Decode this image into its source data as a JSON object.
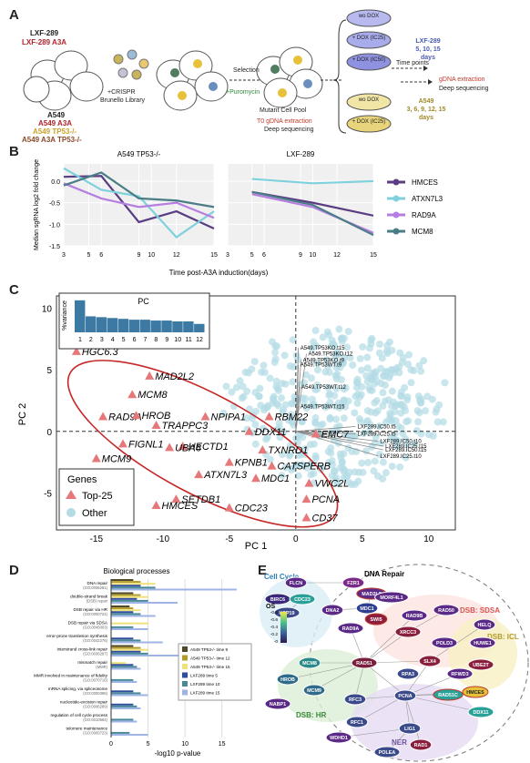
{
  "panelA": {
    "letter": "A",
    "lxf_label": "LXF-289",
    "lxf_a3a": "LXF-289 A3A",
    "a549_labels": [
      "A549",
      "A549 A3A",
      "A549 TP53-/-",
      "A549 A3A TP53-/-"
    ],
    "library": [
      "+CRISPR",
      "Brunello Library"
    ],
    "selection": "Selection",
    "puromycin": "+Puromycin",
    "pool": "Mutant Cell Pool",
    "t0": "T0 gDNA extraction",
    "t0_seq": "Deep sequencing",
    "dishes_top": [
      "wo DOX",
      "+ DOX (IC25)",
      "+ DOX (IC50)"
    ],
    "dishes_bottom": [
      "wo DOX",
      "+ DOX (IC25)"
    ],
    "lxf_days": [
      "LXF-289",
      "5, 10, 15",
      "days"
    ],
    "timepoints": "Time points",
    "gdna": "gDNA extraction",
    "deep": "Deep sequencing",
    "a549_days": [
      "A549",
      "3, 6, 9, 12, 15",
      "days"
    ]
  },
  "panelB": {
    "letter": "B",
    "ylabel": [
      "Median sgRNA log2 fold change"
    ],
    "xlabel": "Time post-A3A induction(days)",
    "legend": [
      "HMCES",
      "ATXN7L3",
      "RAD9A",
      "MCM8"
    ]
  },
  "chart_data": [
    {
      "type": "line",
      "title": "A549 TP53-/-",
      "xlabel": "Time post-A3A induction(days)",
      "ylabel": "Median sgRNA log2 fold change",
      "x": [
        3,
        6,
        9,
        12,
        15
      ],
      "x_ticks": [
        3,
        5,
        6,
        9,
        10,
        12,
        15
      ],
      "ylim": [
        -1.5,
        0.4
      ],
      "y_ticks": [
        0.0,
        -0.5,
        -1.0,
        -1.5
      ],
      "series": [
        {
          "name": "HMCES",
          "color": "#5a3d82",
          "values": [
            0.1,
            0.12,
            -0.95,
            -0.7,
            -1.1
          ]
        },
        {
          "name": "ATXN7L3",
          "color": "#7fd1dc",
          "values": [
            0.3,
            -0.2,
            -0.35,
            -1.3,
            -0.7
          ]
        },
        {
          "name": "RAD9A",
          "color": "#b57ee0",
          "values": [
            -0.05,
            -0.4,
            -0.6,
            -0.5,
            -0.85
          ]
        },
        {
          "name": "MCM8",
          "color": "#4a7d86",
          "values": [
            -0.1,
            0.2,
            -0.4,
            -0.45,
            -0.6
          ]
        }
      ]
    },
    {
      "type": "line",
      "title": "LXF-289",
      "x": [
        5,
        10,
        15
      ],
      "ylim": [
        -1.5,
        0.4
      ],
      "series": [
        {
          "name": "HMCES",
          "color": "#5a3d82",
          "values": [
            -0.25,
            -0.5,
            -0.8
          ]
        },
        {
          "name": "ATXN7L3",
          "color": "#7fd1dc",
          "values": [
            0.05,
            -0.05,
            0.0
          ]
        },
        {
          "name": "RAD9A",
          "color": "#b57ee0",
          "values": [
            -0.3,
            -0.6,
            -1.2
          ]
        },
        {
          "name": "MCM8",
          "color": "#4a7d86",
          "values": [
            -0.25,
            -0.55,
            -1.25
          ]
        }
      ]
    },
    {
      "type": "scatter",
      "xlabel": "PC 1",
      "ylabel": "PC 2",
      "xlim": [
        -18,
        12
      ],
      "ylim": [
        -8,
        11
      ],
      "x_ticks": [
        -15,
        -10,
        -5,
        0,
        5,
        10
      ],
      "y_ticks": [
        10,
        5,
        0,
        -5
      ],
      "legend_title": "Genes",
      "legend": [
        "Top-25",
        "Other"
      ],
      "top25": [
        {
          "label": "HGC6.3",
          "x": -16.5,
          "y": 6.5
        },
        {
          "label": "MAD2L2",
          "x": -11.0,
          "y": 4.5
        },
        {
          "label": "MCM8",
          "x": -12.3,
          "y": 3.0
        },
        {
          "label": "RAD9A",
          "x": -14.5,
          "y": 1.2
        },
        {
          "label": "HROB",
          "x": -12.0,
          "y": 1.3
        },
        {
          "label": "TRAPPC3",
          "x": -10.5,
          "y": 0.5
        },
        {
          "label": "NPIPA1",
          "x": -6.8,
          "y": 1.2
        },
        {
          "label": "RBM22",
          "x": -2.0,
          "y": 1.2
        },
        {
          "label": "DDX11",
          "x": -3.5,
          "y": 0.0
        },
        {
          "label": "EMC7",
          "x": 1.5,
          "y": -0.2
        },
        {
          "label": "FIGNL1",
          "x": -13.0,
          "y": -1.0
        },
        {
          "label": "HECTD1",
          "x": -8.5,
          "y": -1.2
        },
        {
          "label": "TXNRD1",
          "x": -2.5,
          "y": -1.5
        },
        {
          "label": "UBA6",
          "x": -9.5,
          "y": -1.3
        },
        {
          "label": "KPNB1",
          "x": -5.0,
          "y": -2.5
        },
        {
          "label": "CATSPERB",
          "x": -1.8,
          "y": -2.8
        },
        {
          "label": "MCM9",
          "x": -15.0,
          "y": -2.2
        },
        {
          "label": "ATXN7L3",
          "x": -7.3,
          "y": -3.5
        },
        {
          "label": "MDC1",
          "x": -3.0,
          "y": -3.8
        },
        {
          "label": "VWC2L",
          "x": 1.0,
          "y": -4.2
        },
        {
          "label": "SETDB1",
          "x": -9.0,
          "y": -5.5
        },
        {
          "label": "PCNA",
          "x": 0.8,
          "y": -5.5
        },
        {
          "label": "CDC23",
          "x": -5.0,
          "y": -6.2
        },
        {
          "label": "HMCES",
          "x": -10.5,
          "y": -6.0
        },
        {
          "label": "CD37",
          "x": 0.8,
          "y": -7.0
        }
      ],
      "loadings": [
        "A549.TP53KO.t15",
        "A549.TP53KO.t12",
        "A549.TP53KO.t9",
        "A549.TP53WT.t9",
        "A549.TP53WT.t12",
        "A549.TP53WT.t15",
        "LXF289.IC50.t5",
        "LXF289.IC25.t5",
        "LXF289.IC50.t10",
        "LXF289.IC25.t15",
        "LXF289.IC50.t15",
        "LXF289.IC25.t10"
      ]
    },
    {
      "type": "bar",
      "title": "PC",
      "ylabel": "%variance",
      "categories": [
        "1",
        "2",
        "3",
        "4",
        "5",
        "6",
        "7",
        "8",
        "9",
        "10",
        "11",
        "12"
      ],
      "values": [
        19,
        9.5,
        9,
        8.5,
        8,
        7.5,
        7.5,
        7,
        7,
        6.5,
        6.5,
        5
      ],
      "y_ticks": [
        0,
        5,
        10,
        15,
        20
      ],
      "ylim": [
        0,
        20
      ]
    },
    {
      "type": "bar",
      "title": "Biological processes",
      "xlabel": "-log10 p-value",
      "x_ticks": [
        0,
        5,
        10,
        15
      ],
      "categories": [
        "DNA repair (GO:0006281)",
        "double-strand break (DSB) repair (GO:0006302)",
        "DSB repair via HR (GO:0000724)",
        "DSB repair via SDSA (GO:0045003)",
        "error-prone translesion synthesis (GO:0042276)",
        "interstrand cross-link repair (GO:0036297)",
        "mismatch repair (MMR) (GO:0006298)",
        "MMR involved in maintenance of fidelity (GO:0070716)",
        "mRNA splicing, via spliceosome (GO:0000398)",
        "nucleotide-excision repair (GO:0006289)",
        "regulation of cell cycle process (GO:0010564)",
        "telomere maintenance (GO:0000723)"
      ],
      "series": [
        {
          "name": "A549 TP53-/- time 9",
          "color": "#4f4a2a",
          "values": [
            3,
            3,
            2.5,
            0,
            0,
            3,
            0,
            0,
            0,
            0,
            0,
            0
          ]
        },
        {
          "name": "A549 TP53-/- time 12",
          "color": "#b39b2c",
          "values": [
            4,
            4,
            3,
            0,
            0,
            4,
            0,
            0,
            0,
            0,
            0,
            0
          ]
        },
        {
          "name": "A549 TP53-/- time 15",
          "color": "#efe27a",
          "values": [
            6,
            5,
            4,
            5,
            0,
            5,
            2,
            0,
            0,
            0,
            0,
            0
          ]
        },
        {
          "name": "LXF289 time 5",
          "color": "#2f4d9c",
          "values": [
            4,
            3.5,
            3,
            0,
            3,
            4,
            3,
            0,
            3,
            3,
            0,
            0
          ]
        },
        {
          "name": "LXF289 time 10",
          "color": "#4a8a98",
          "values": [
            6,
            5,
            4,
            3,
            4,
            5,
            3.5,
            3,
            4,
            3.5,
            3,
            2.5
          ]
        },
        {
          "name": "LXF289 time 15",
          "color": "#9fb4e6",
          "values": [
            17,
            9,
            6,
            5,
            7,
            16,
            4,
            3.5,
            5,
            4,
            3.5,
            5
          ]
        }
      ]
    }
  ],
  "panelE": {
    "letter": "E",
    "dna_repair": "DNA Repair",
    "cell_cycle": "Cell Cycle",
    "sdsa": "DSB: SDSA",
    "icl": "DSB: ICL",
    "hr": "DSB: HR",
    "ner": "NER",
    "os_label": "OS",
    "os_ticks": [
      "-0.8",
      "-0.6",
      "-0.4",
      "-0.2",
      "-0"
    ],
    "nodes": [
      "FLCN",
      "FZR1",
      "BIRC6",
      "CDC23",
      "USP19",
      "DNA2",
      "MDC1",
      "MAD2L2",
      "SWI5",
      "MORF4L1",
      "RAD9A",
      "RAD9B",
      "XRCC3",
      "RAD50",
      "RPA3",
      "HROB",
      "MCM8",
      "MCM9",
      "RAD51",
      "SLX4",
      "HELQ",
      "HUWE1",
      "UBE2T",
      "NABP1",
      "RFC3",
      "RFC1",
      "PCNA",
      "HMCES",
      "RAD51C",
      "DDX11",
      "LIG1",
      "WDHD1",
      "POLEA",
      "RAD1",
      "RFWD3",
      "POLD3"
    ]
  }
}
